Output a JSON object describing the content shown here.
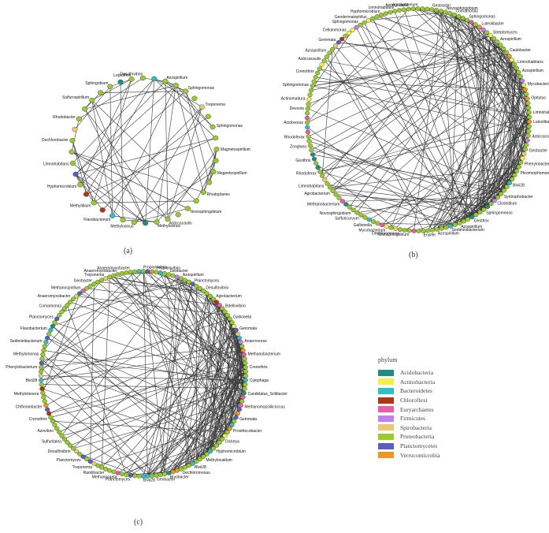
{
  "figure": {
    "panels": [
      {
        "id": "a",
        "label": "(a)",
        "labeled_nodes": [
          {
            "label": "Leptothrix",
            "phylum": "Proteobacteria"
          },
          {
            "label": "Desulfovibrio",
            "phylum": "Proteobacteria"
          },
          {
            "label": "Azospirillum",
            "phylum": "Proteobacteria"
          },
          {
            "label": "Sphingomonas",
            "phylum": "Proteobacteria"
          },
          {
            "label": "Treponema",
            "phylum": "Spirobacteria"
          },
          {
            "label": "Sphingomonas",
            "phylum": "Proteobacteria"
          },
          {
            "label": "Magnetospirillum",
            "phylum": "Proteobacteria"
          },
          {
            "label": "Magnetospirillum",
            "phylum": "Proteobacteria"
          },
          {
            "label": "Rhodoplanes",
            "phylum": "Proteobacteria"
          },
          {
            "label": "Novosphingobium",
            "phylum": "Proteobacteria"
          },
          {
            "label": "Asticcacaulis",
            "phylum": "Proteobacteria"
          },
          {
            "label": "Methylosinus",
            "phylum": "Proteobacteria"
          },
          {
            "label": "Methylosinus",
            "phylum": "Proteobacteria"
          },
          {
            "label": "Flavobacterium",
            "phylum": "Bacteroidetes"
          },
          {
            "label": "Methylibium",
            "phylum": "Proteobacteria"
          },
          {
            "label": "Hyphomicrobium",
            "phylum": "Proteobacteria"
          },
          {
            "label": "Limnohabitans",
            "phylum": "Proteobacteria"
          },
          {
            "label": "Dechlorobacter",
            "phylum": "Proteobacteria"
          },
          {
            "label": "Rhodobacter",
            "phylum": "Proteobacteria"
          },
          {
            "label": "Sulfurospirillum",
            "phylum": "Proteobacteria"
          },
          {
            "label": "Sphingobium",
            "phylum": "Proteobacteria"
          }
        ]
      },
      {
        "id": "b",
        "label": "(b)",
        "labeled_nodes": [
          {
            "label": "Asticcacaulis",
            "phylum": "Proteobacteria"
          },
          {
            "label": "Agrobacterium",
            "phylum": "Proteobacteria"
          },
          {
            "label": "Geobacter",
            "phylum": "Proteobacteria"
          },
          {
            "label": "Novosphingobium",
            "phylum": "Proteobacteria"
          },
          {
            "label": "Comamonas",
            "phylum": "Proteobacteria"
          },
          {
            "label": "Sphingomonas",
            "phylum": "Proteobacteria"
          },
          {
            "label": "Luteolibacter",
            "phylum": "Verrucomicrobia"
          },
          {
            "label": "Streptomyces",
            "phylum": "Actinobacteria"
          },
          {
            "label": "Azospirillum",
            "phylum": "Proteobacteria"
          },
          {
            "label": "Caulobacter",
            "phylum": "Proteobacteria"
          },
          {
            "label": "Limnohabitans",
            "phylum": "Proteobacteria"
          },
          {
            "label": "Azospirillum",
            "phylum": "Proteobacteria"
          },
          {
            "label": "Mycobacterium",
            "phylum": "Actinobacteria"
          },
          {
            "label": "Opitutus",
            "phylum": "Verrucomicrobia"
          },
          {
            "label": "Limnohabitans",
            "phylum": "Proteobacteria"
          },
          {
            "label": "Luteolibacter",
            "phylum": "Verrucomicrobia"
          },
          {
            "label": "Asticcacaulis",
            "phylum": "Proteobacteria"
          },
          {
            "label": "Geobacter",
            "phylum": "Proteobacteria"
          },
          {
            "label": "Phenylobacterium",
            "phylum": "Proteobacteria"
          },
          {
            "label": "Pleomorphomonas",
            "phylum": "Proteobacteria"
          },
          {
            "label": "Blvii28",
            "phylum": "Bacteroidetes"
          },
          {
            "label": "Syntrophobacter",
            "phylum": "Proteobacteria"
          },
          {
            "label": "Clostridium",
            "phylum": "Firmicutes"
          },
          {
            "label": "Sphingomonas",
            "phylum": "Proteobacteria"
          },
          {
            "label": "Geothrix",
            "phylum": "Acidobacteria"
          },
          {
            "label": "Azospirillum",
            "phylum": "Proteobacteria"
          },
          {
            "label": "Sediminibacterium",
            "phylum": "Bacteroidetes"
          },
          {
            "label": "Azospirillum",
            "phylum": "Proteobacteria"
          },
          {
            "label": "Ensifer",
            "phylum": "Proteobacteria"
          },
          {
            "label": "Novosphingobium",
            "phylum": "Proteobacteria"
          },
          {
            "label": "Dechloromonas",
            "phylum": "Proteobacteria"
          },
          {
            "label": "Mycobacterium",
            "phylum": "Actinobacteria"
          },
          {
            "label": "Gallionella",
            "phylum": "Proteobacteria"
          },
          {
            "label": "Sulfuricurvum",
            "phylum": "Proteobacteria"
          },
          {
            "label": "Novosphingobium",
            "phylum": "Proteobacteria"
          },
          {
            "label": "Methanobacterium",
            "phylum": "Euryarchaetes"
          },
          {
            "label": "Agrobacterium",
            "phylum": "Proteobacteria"
          },
          {
            "label": "Limnohabitans",
            "phylum": "Proteobacteria"
          },
          {
            "label": "Rhodoferax",
            "phylum": "Proteobacteria"
          },
          {
            "label": "Geothrix",
            "phylum": "Acidobacteria"
          },
          {
            "label": "Zoogloea",
            "phylum": "Proteobacteria"
          },
          {
            "label": "Rhodoferax",
            "phylum": "Proteobacteria"
          },
          {
            "label": "Acidovorax",
            "phylum": "Proteobacteria"
          },
          {
            "label": "Devosia",
            "phylum": "Proteobacteria"
          },
          {
            "label": "Actinomadura",
            "phylum": "Actinobacteria"
          },
          {
            "label": "Sphingomonas",
            "phylum": "Proteobacteria"
          },
          {
            "label": "Crenothrix",
            "phylum": "Proteobacteria"
          },
          {
            "label": "Asticcacaulis",
            "phylum": "Proteobacteria"
          },
          {
            "label": "Azospirillum",
            "phylum": "Proteobacteria"
          },
          {
            "label": "Gemmata",
            "phylum": "Planctomycetes"
          },
          {
            "label": "Cellulomonas",
            "phylum": "Actinobacteria"
          },
          {
            "label": "Sphingomonas",
            "phylum": "Proteobacteria"
          },
          {
            "label": "Geodermatophilus",
            "phylum": "Actinobacteria"
          },
          {
            "label": "Hyphomicrobium",
            "phylum": "Proteobacteria"
          },
          {
            "label": "Limnohabitans",
            "phylum": "Proteobacteria"
          }
        ]
      },
      {
        "id": "c",
        "label": "(c)",
        "labeled_nodes": [
          {
            "label": "Propionivibrio",
            "phylum": "Proteobacteria"
          },
          {
            "label": "Propionivibrio",
            "phylum": "Proteobacteria"
          },
          {
            "label": "Geobacter",
            "phylum": "Proteobacteria"
          },
          {
            "label": "Azospirillum",
            "phylum": "Proteobacteria"
          },
          {
            "label": "Planctomyces",
            "phylum": "Planctomycetes"
          },
          {
            "label": "Desulfovibrio",
            "phylum": "Proteobacteria"
          },
          {
            "label": "Agrobacterium",
            "phylum": "Proteobacteria"
          },
          {
            "label": "Bdellovibrio",
            "phylum": "Proteobacteria"
          },
          {
            "label": "Gallionella",
            "phylum": "Proteobacteria"
          },
          {
            "label": "Gemmata",
            "phylum": "Planctomycetes"
          },
          {
            "label": "Anaerovorax",
            "phylum": "Firmicutes"
          },
          {
            "label": "Methanobacterium",
            "phylum": "Euryarchaetes"
          },
          {
            "label": "Crenothrix",
            "phylum": "Proteobacteria"
          },
          {
            "label": "Cytophaga",
            "phylum": "Bacteroidetes"
          },
          {
            "label": "Candidatus_Solibacter",
            "phylum": "Acidobacteria"
          },
          {
            "label": "Methanomassiliicoccus",
            "phylum": "Euryarchaetes"
          },
          {
            "label": "Gemmata",
            "phylum": "Planctomycetes"
          },
          {
            "label": "Prosthecobacter",
            "phylum": "Verrucomicrobia"
          },
          {
            "label": "Dickeya",
            "phylum": "Proteobacteria"
          },
          {
            "label": "Hyphomicrobium",
            "phylum": "Proteobacteria"
          },
          {
            "label": "Methylocaldum",
            "phylum": "Proteobacteria"
          },
          {
            "label": "Blvii28",
            "phylum": "Bacteroidetes"
          },
          {
            "label": "Dechloromonas",
            "phylum": "Proteobacteria"
          },
          {
            "label": "Bryobacter",
            "phylum": "Acidobacteria"
          },
          {
            "label": "Geobacter",
            "phylum": "Proteobacteria"
          },
          {
            "label": "Blvii28",
            "phylum": "Bacteroidetes"
          },
          {
            "label": "Planctomyces",
            "phylum": "Planctomycetes"
          },
          {
            "label": "Methanosaeta",
            "phylum": "Euryarchaetes"
          },
          {
            "label": "Ramlibacter",
            "phylum": "Proteobacteria"
          },
          {
            "label": "Treponema",
            "phylum": "Spirobacteria"
          },
          {
            "label": "Planctomyces",
            "phylum": "Planctomycetes"
          },
          {
            "label": "Desulfovibrio",
            "phylum": "Proteobacteria"
          },
          {
            "label": "Sulfuritalea",
            "phylum": "Proteobacteria"
          },
          {
            "label": "Azovibrio",
            "phylum": "Proteobacteria"
          },
          {
            "label": "Crenothrix",
            "phylum": "Proteobacteria"
          },
          {
            "label": "Chthoniobacter",
            "phylum": "Verrucomicrobia"
          },
          {
            "label": "Methylotenera",
            "phylum": "Proteobacteria"
          },
          {
            "label": "Blvii28",
            "phylum": "Bacteroidetes"
          },
          {
            "label": "Phenylobacterium",
            "phylum": "Proteobacteria"
          },
          {
            "label": "Methylomonas",
            "phylum": "Proteobacteria"
          },
          {
            "label": "Sediminibacterium",
            "phylum": "Bacteroidetes"
          },
          {
            "label": "Flavobacterium",
            "phylum": "Bacteroidetes"
          },
          {
            "label": "Planctomyces",
            "phylum": "Planctomycetes"
          },
          {
            "label": "Comamonas",
            "phylum": "Proteobacteria"
          },
          {
            "label": "Anaeromyxobacter",
            "phylum": "Proteobacteria"
          },
          {
            "label": "Methanospirillum",
            "phylum": "Euryarchaetes"
          },
          {
            "label": "Geobacter",
            "phylum": "Proteobacteria"
          },
          {
            "label": "Treponema",
            "phylum": "Spirobacteria"
          },
          {
            "label": "Anaeromyxobacter",
            "phylum": "Proteobacteria"
          },
          {
            "label": "Anaeromyxobacter",
            "phylum": "Proteobacteria"
          }
        ]
      }
    ]
  },
  "legend": {
    "title": "phylum",
    "items": [
      {
        "label": "Acidobacteria",
        "color": "#1f8f83"
      },
      {
        "label": "Actinobacteria",
        "color": "#f2ee4a"
      },
      {
        "label": "Bacteroidetes",
        "color": "#2ebfc8"
      },
      {
        "label": "Chloroflexi",
        "color": "#b5340f"
      },
      {
        "label": "Euryarchaetes",
        "color": "#ef5aa8"
      },
      {
        "label": "Firmicutes",
        "color": "#c27ff0"
      },
      {
        "label": "Spirobacteria",
        "color": "#e8c977"
      },
      {
        "label": "Proteobacteria",
        "color": "#9acb2e"
      },
      {
        "label": "Planctomycetes",
        "color": "#5a5ec0"
      },
      {
        "label": "Verrucomicrobia",
        "color": "#f0961f"
      }
    ]
  }
}
